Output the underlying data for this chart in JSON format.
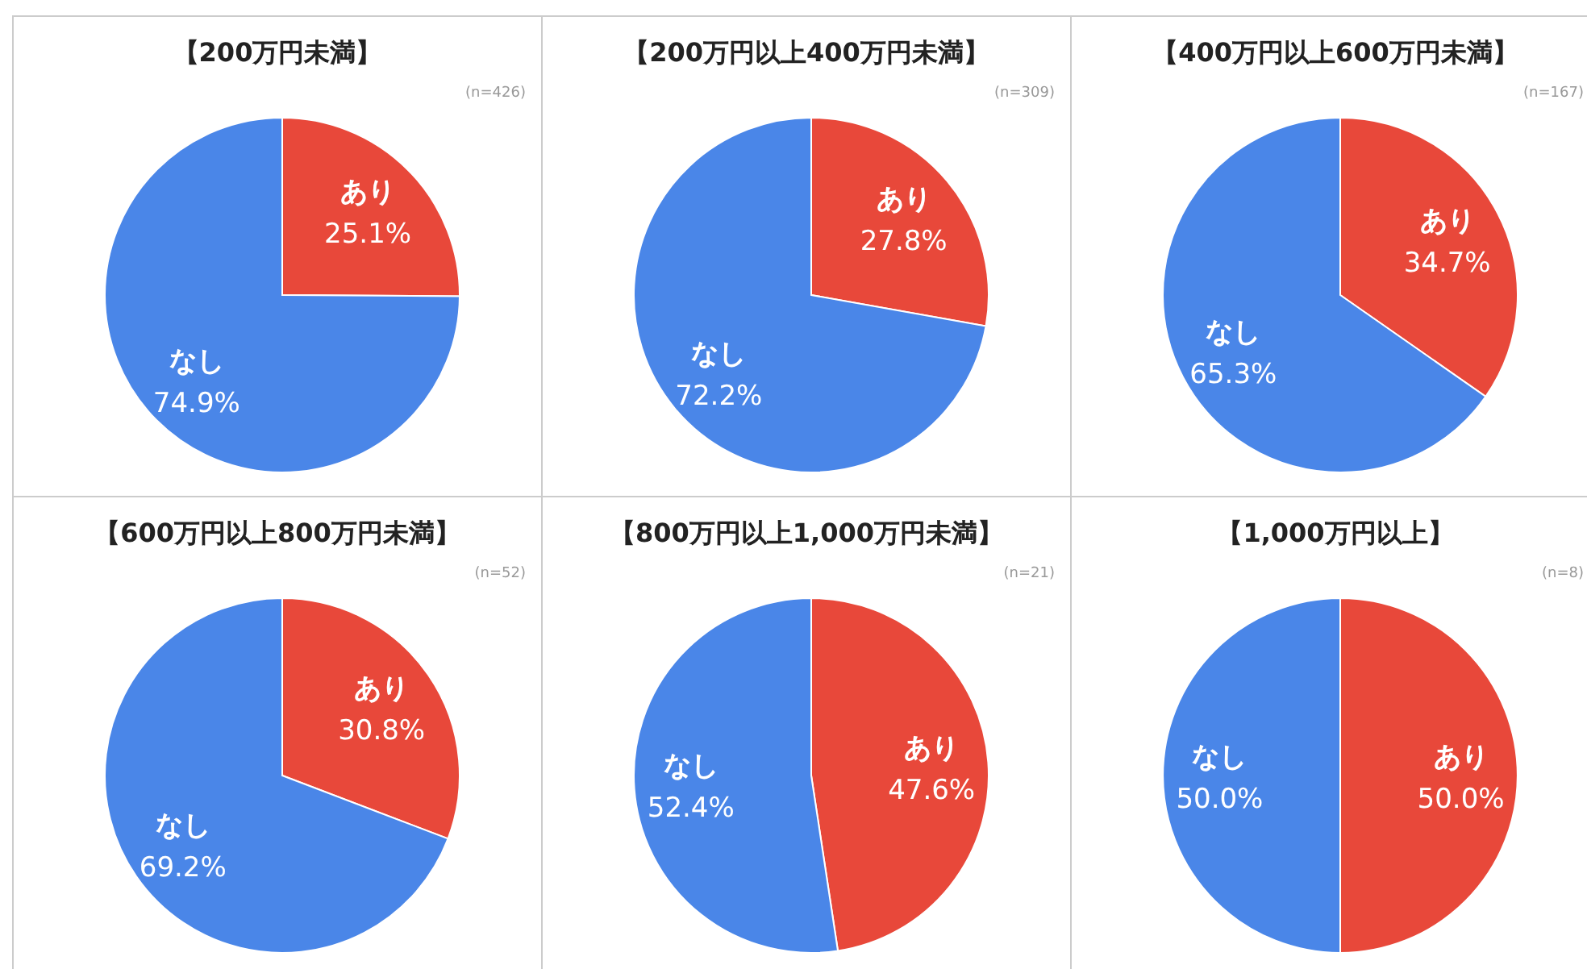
{
  "chart_data": [
    {
      "type": "pie",
      "title": "【200万円未満】",
      "subtitle": "(n=426)",
      "categories": [
        "あり",
        "なし"
      ],
      "values": [
        25.1,
        74.9
      ],
      "value_labels": [
        "25.1%",
        "74.9%"
      ],
      "colors": [
        "#e8483a",
        "#4a86e8"
      ]
    },
    {
      "type": "pie",
      "title": "【200万円以上400万円未満】",
      "subtitle": "(n=309)",
      "categories": [
        "あり",
        "なし"
      ],
      "values": [
        27.8,
        72.2
      ],
      "value_labels": [
        "27.8%",
        "72.2%"
      ],
      "colors": [
        "#e8483a",
        "#4a86e8"
      ]
    },
    {
      "type": "pie",
      "title": "【400万円以上600万円未満】",
      "subtitle": "(n=167)",
      "categories": [
        "あり",
        "なし"
      ],
      "values": [
        34.7,
        65.3
      ],
      "value_labels": [
        "34.7%",
        "65.3%"
      ],
      "colors": [
        "#e8483a",
        "#4a86e8"
      ]
    },
    {
      "type": "pie",
      "title": "【600万円以上800万円未満】",
      "subtitle": "(n=52)",
      "categories": [
        "あり",
        "なし"
      ],
      "values": [
        30.8,
        69.2
      ],
      "value_labels": [
        "30.8%",
        "69.2%"
      ],
      "colors": [
        "#e8483a",
        "#4a86e8"
      ]
    },
    {
      "type": "pie",
      "title": "【800万円以上1,000万円未満】",
      "subtitle": "(n=21)",
      "categories": [
        "あり",
        "なし"
      ],
      "values": [
        47.6,
        52.4
      ],
      "value_labels": [
        "47.6%",
        "52.4%"
      ],
      "colors": [
        "#e8483a",
        "#4a86e8"
      ]
    },
    {
      "type": "pie",
      "title": "【1,000万円以上】",
      "subtitle": "(n=8)",
      "categories": [
        "あり",
        "なし"
      ],
      "values": [
        50.0,
        50.0
      ],
      "value_labels": [
        "50.0%",
        "50.0%"
      ],
      "colors": [
        "#e8483a",
        "#4a86e8"
      ]
    }
  ]
}
